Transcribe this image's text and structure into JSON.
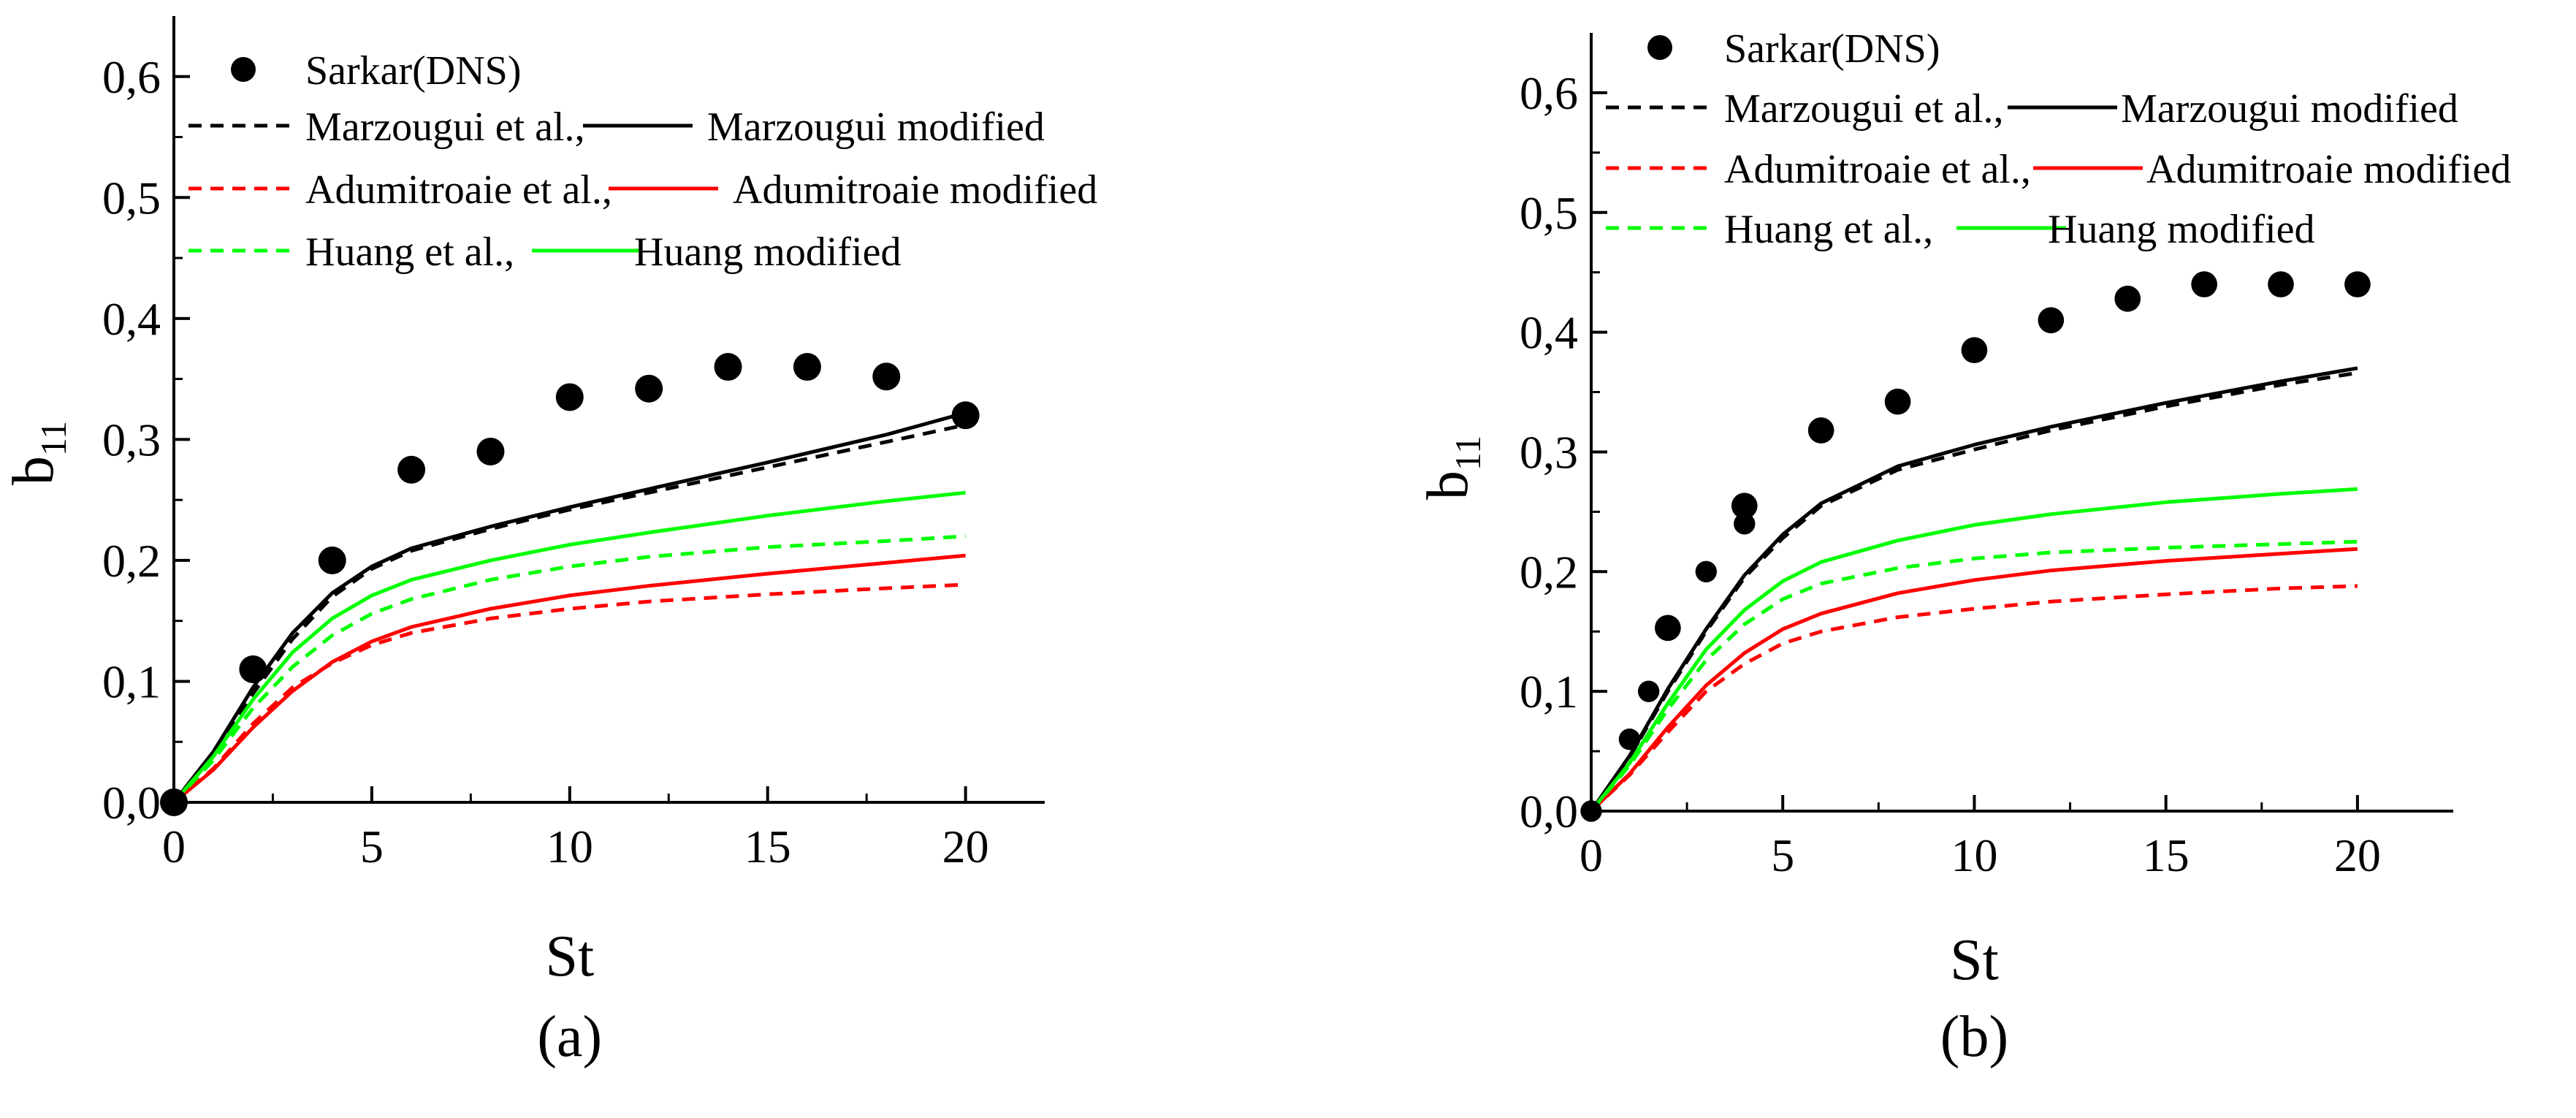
{
  "chart_data": [
    {
      "type": "line",
      "panel_label": "(a)",
      "xlabel": "St",
      "ylabel_base": "b",
      "ylabel_sub": "11",
      "xlim": [
        0,
        22
      ],
      "ylim": [
        0,
        0.65
      ],
      "x_ticks": [
        0,
        5,
        10,
        15,
        20
      ],
      "x_tick_labels": [
        "0",
        "5",
        "10",
        "15",
        "20"
      ],
      "y_ticks": [
        0,
        0.1,
        0.2,
        0.3,
        0.4,
        0.5,
        0.6
      ],
      "y_tick_labels": [
        "0,0",
        "0,1",
        "0,2",
        "0,3",
        "0,4",
        "0,5",
        "0,6"
      ],
      "legend_location": "top-left",
      "dns": {
        "name": "Sarkar(DNS)",
        "x": [
          0,
          2,
          4,
          6,
          8,
          10,
          12,
          14,
          16,
          18,
          20
        ],
        "y": [
          0.0,
          0.11,
          0.2,
          0.275,
          0.29,
          0.335,
          0.342,
          0.36,
          0.36,
          0.352,
          0.32
        ]
      },
      "series": [
        {
          "name": "Marzougui et al.,",
          "color": "#000000",
          "dash": true,
          "x": [
            0,
            1,
            2,
            3,
            4,
            5,
            6,
            8,
            10,
            12,
            15,
            18,
            20
          ],
          "y": [
            0,
            0.04,
            0.09,
            0.135,
            0.17,
            0.193,
            0.208,
            0.226,
            0.242,
            0.256,
            0.277,
            0.298,
            0.312
          ]
        },
        {
          "name": "Marzougui modified",
          "color": "#000000",
          "dash": false,
          "x": [
            0,
            1,
            2,
            3,
            4,
            5,
            6,
            8,
            10,
            12,
            15,
            18,
            20
          ],
          "y": [
            0,
            0.042,
            0.095,
            0.14,
            0.173,
            0.195,
            0.21,
            0.228,
            0.244,
            0.259,
            0.281,
            0.304,
            0.322
          ]
        },
        {
          "name": "Adumitroaie et al.,",
          "color": "#ff0000",
          "dash": true,
          "x": [
            0,
            1,
            2,
            3,
            4,
            5,
            6,
            8,
            10,
            12,
            15,
            18,
            20
          ],
          "y": [
            0,
            0.028,
            0.065,
            0.095,
            0.115,
            0.13,
            0.14,
            0.152,
            0.16,
            0.166,
            0.172,
            0.177,
            0.18
          ]
        },
        {
          "name": "Adumitroaie modified",
          "color": "#ff0000",
          "dash": false,
          "x": [
            0,
            1,
            2,
            3,
            4,
            5,
            6,
            8,
            10,
            12,
            15,
            18,
            20
          ],
          "y": [
            0,
            0.027,
            0.062,
            0.092,
            0.116,
            0.133,
            0.145,
            0.16,
            0.171,
            0.179,
            0.189,
            0.198,
            0.204
          ]
        },
        {
          "name": "Huang et al.,",
          "color": "#00ff00",
          "dash": true,
          "x": [
            0,
            1,
            2,
            3,
            4,
            5,
            6,
            8,
            10,
            12,
            15,
            18,
            20
          ],
          "y": [
            0,
            0.035,
            0.078,
            0.112,
            0.138,
            0.156,
            0.168,
            0.184,
            0.195,
            0.203,
            0.211,
            0.216,
            0.22
          ]
        },
        {
          "name": "Huang modified",
          "color": "#00ff00",
          "dash": false,
          "x": [
            0,
            1,
            2,
            3,
            4,
            5,
            6,
            8,
            10,
            12,
            15,
            18,
            20
          ],
          "y": [
            0,
            0.038,
            0.085,
            0.124,
            0.152,
            0.171,
            0.184,
            0.2,
            0.213,
            0.223,
            0.237,
            0.249,
            0.256
          ]
        }
      ]
    },
    {
      "type": "line",
      "panel_label": "(b)",
      "xlabel": "St",
      "ylabel_base": "b",
      "ylabel_sub": "11",
      "xlim": [
        0,
        22.5
      ],
      "ylim": [
        0,
        0.65
      ],
      "x_ticks": [
        0,
        5,
        10,
        15,
        20
      ],
      "x_tick_labels": [
        "0",
        "5",
        "10",
        "15",
        "20"
      ],
      "y_ticks": [
        0,
        0.1,
        0.2,
        0.3,
        0.4,
        0.5,
        0.6
      ],
      "y_tick_labels": [
        "0,0",
        "0,1",
        "0,2",
        "0,3",
        "0,4",
        "0,5",
        "0,6"
      ],
      "legend_location": "top-left",
      "dns": {
        "name": "Sarkar(DNS)",
        "x": [
          0,
          1,
          1.5,
          2,
          3,
          4,
          4,
          6,
          8,
          10,
          12,
          14,
          16,
          18,
          20
        ],
        "y": [
          0.0,
          0.06,
          0.1,
          0.153,
          0.2,
          0.24,
          0.255,
          0.318,
          0.342,
          0.385,
          0.41,
          0.428,
          0.44,
          0.44,
          0.44
        ],
        "r": [
          14,
          14,
          14,
          17,
          14,
          14,
          17,
          17,
          17,
          17,
          17,
          17,
          17,
          17,
          17
        ]
      },
      "series": [
        {
          "name": "Marzougui et al.,",
          "color": "#000000",
          "dash": true,
          "x": [
            0,
            1,
            2,
            3,
            4,
            5,
            6,
            8,
            10,
            12,
            15,
            18,
            20
          ],
          "y": [
            0,
            0.045,
            0.1,
            0.15,
            0.195,
            0.228,
            0.255,
            0.285,
            0.302,
            0.318,
            0.338,
            0.356,
            0.366
          ]
        },
        {
          "name": "Marzougui modified",
          "color": "#000000",
          "dash": false,
          "x": [
            0,
            1,
            2,
            3,
            4,
            5,
            6,
            8,
            10,
            12,
            15,
            18,
            20
          ],
          "y": [
            0,
            0.046,
            0.102,
            0.152,
            0.197,
            0.231,
            0.257,
            0.288,
            0.306,
            0.321,
            0.341,
            0.359,
            0.37
          ]
        },
        {
          "name": "Adumitroaie et al.,",
          "color": "#ff0000",
          "dash": true,
          "x": [
            0,
            1,
            2,
            3,
            4,
            5,
            6,
            8,
            10,
            12,
            15,
            18,
            20
          ],
          "y": [
            0,
            0.03,
            0.066,
            0.1,
            0.123,
            0.14,
            0.15,
            0.162,
            0.169,
            0.175,
            0.181,
            0.186,
            0.188
          ]
        },
        {
          "name": "Adumitroaie modified",
          "color": "#ff0000",
          "dash": false,
          "x": [
            0,
            1,
            2,
            3,
            4,
            5,
            6,
            8,
            10,
            12,
            15,
            18,
            20
          ],
          "y": [
            0,
            0.031,
            0.07,
            0.105,
            0.132,
            0.152,
            0.165,
            0.182,
            0.193,
            0.201,
            0.209,
            0.215,
            0.219
          ]
        },
        {
          "name": "Huang et al.,",
          "color": "#00ff00",
          "dash": true,
          "x": [
            0,
            1,
            2,
            3,
            4,
            5,
            6,
            8,
            10,
            12,
            15,
            18,
            20
          ],
          "y": [
            0,
            0.038,
            0.085,
            0.126,
            0.156,
            0.177,
            0.19,
            0.203,
            0.211,
            0.216,
            0.22,
            0.223,
            0.225
          ]
        },
        {
          "name": "Huang modified",
          "color": "#00ff00",
          "dash": false,
          "x": [
            0,
            1,
            2,
            3,
            4,
            5,
            6,
            8,
            10,
            12,
            15,
            18,
            20
          ],
          "y": [
            0,
            0.04,
            0.09,
            0.135,
            0.168,
            0.192,
            0.208,
            0.226,
            0.239,
            0.248,
            0.258,
            0.265,
            0.269
          ]
        }
      ]
    }
  ]
}
